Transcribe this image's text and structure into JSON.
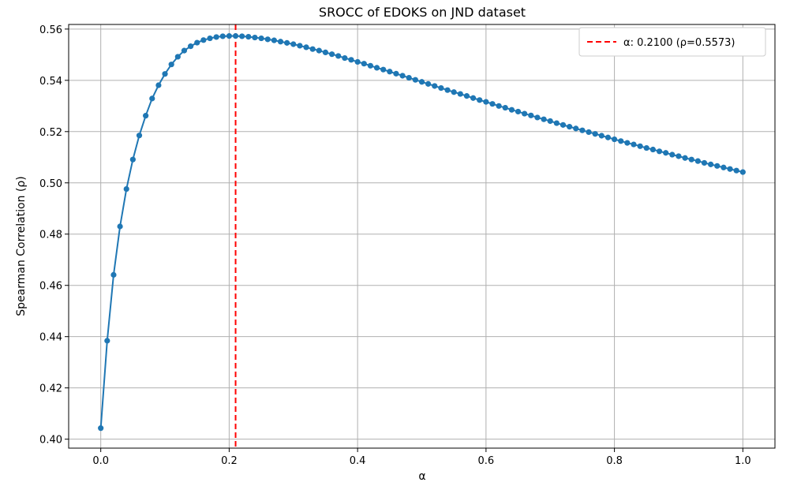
{
  "chart_data": {
    "type": "line",
    "title": "SROCC of EDOKS on JND dataset",
    "xlabel": "α",
    "ylabel": "Spearman Correlation (ρ)",
    "xlim": [
      -0.05,
      1.05
    ],
    "ylim": [
      0.3965,
      0.5618
    ],
    "xticks": [
      0.0,
      0.2,
      0.4,
      0.6,
      0.8,
      1.0
    ],
    "xtick_labels": [
      "0.0",
      "0.2",
      "0.4",
      "0.6",
      "0.8",
      "1.0"
    ],
    "yticks": [
      0.4,
      0.42,
      0.44,
      0.46,
      0.48,
      0.5,
      0.52,
      0.54,
      0.56
    ],
    "ytick_labels": [
      "0.40",
      "0.42",
      "0.44",
      "0.46",
      "0.48",
      "0.50",
      "0.52",
      "0.54",
      "0.56"
    ],
    "grid": true,
    "legend_position": "top-right",
    "colors": {
      "series": "#1f77b4",
      "marker_line": "#ff0000",
      "grid": "#b0b0b0",
      "axes": "#000000"
    },
    "series": [
      {
        "x": [
          0.0,
          0.01,
          0.02,
          0.03,
          0.04,
          0.05,
          0.06,
          0.07,
          0.08,
          0.09,
          0.1,
          0.11,
          0.12,
          0.13,
          0.14,
          0.15,
          0.16,
          0.17,
          0.18,
          0.19,
          0.2,
          0.21,
          0.22,
          0.23,
          0.24,
          0.25,
          0.26,
          0.27,
          0.28,
          0.29,
          0.3,
          0.31,
          0.32,
          0.33,
          0.34,
          0.35,
          0.36,
          0.37,
          0.38,
          0.39,
          0.4,
          0.41,
          0.42,
          0.43,
          0.44,
          0.45,
          0.46,
          0.47,
          0.48,
          0.49,
          0.5,
          0.51,
          0.52,
          0.53,
          0.54,
          0.55,
          0.56,
          0.57,
          0.58,
          0.59,
          0.6,
          0.61,
          0.62,
          0.63,
          0.64,
          0.65,
          0.66,
          0.67,
          0.68,
          0.69,
          0.7,
          0.71,
          0.72,
          0.73,
          0.74,
          0.75,
          0.76,
          0.77,
          0.78,
          0.79,
          0.8,
          0.81,
          0.82,
          0.83,
          0.84,
          0.85,
          0.86,
          0.87,
          0.88,
          0.89,
          0.9,
          0.91,
          0.92,
          0.93,
          0.94,
          0.95,
          0.96,
          0.97,
          0.98,
          0.99,
          1.0
        ],
        "values": [
          0.4043,
          0.4384,
          0.4641,
          0.483,
          0.4976,
          0.5091,
          0.5185,
          0.5262,
          0.5329,
          0.5381,
          0.5425,
          0.5462,
          0.5492,
          0.5516,
          0.5533,
          0.5547,
          0.5557,
          0.5564,
          0.5569,
          0.5572,
          0.5573,
          0.5573,
          0.5572,
          0.557,
          0.5567,
          0.5564,
          0.556,
          0.5556,
          0.5551,
          0.5546,
          0.5541,
          0.5535,
          0.5529,
          0.5522,
          0.5516,
          0.5509,
          0.5502,
          0.5495,
          0.5487,
          0.548,
          0.5472,
          0.5465,
          0.5457,
          0.5449,
          0.5442,
          0.5434,
          0.5426,
          0.5418,
          0.541,
          0.5402,
          0.5394,
          0.5386,
          0.5378,
          0.537,
          0.5362,
          0.5354,
          0.5347,
          0.5339,
          0.5331,
          0.5323,
          0.5316,
          0.5308,
          0.53,
          0.5293,
          0.5285,
          0.5278,
          0.527,
          0.5263,
          0.5255,
          0.5248,
          0.5241,
          0.5233,
          0.5226,
          0.5219,
          0.5212,
          0.5205,
          0.5198,
          0.5191,
          0.5184,
          0.5177,
          0.517,
          0.5163,
          0.5156,
          0.515,
          0.5143,
          0.5136,
          0.513,
          0.5123,
          0.5117,
          0.511,
          0.5104,
          0.5097,
          0.5091,
          0.5085,
          0.5078,
          0.5072,
          0.5066,
          0.506,
          0.5054,
          0.5048,
          0.5042
        ]
      }
    ],
    "vline": {
      "x": 0.21,
      "label": "α: 0.2100 (ρ=0.5573)"
    }
  }
}
